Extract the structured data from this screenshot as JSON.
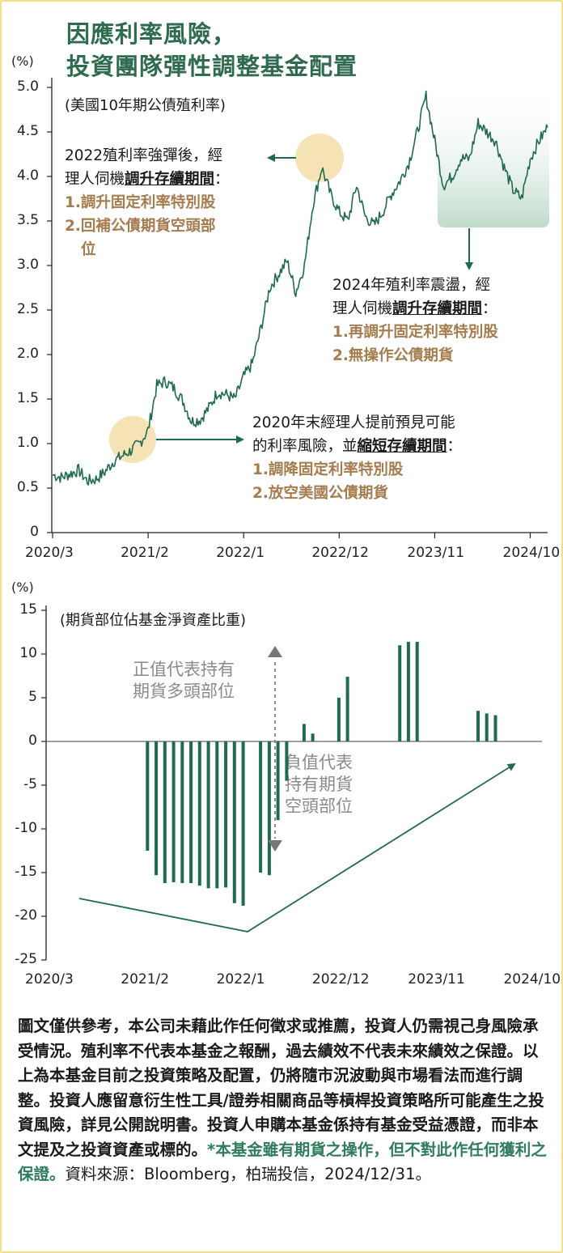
{
  "title_lines": [
    "因應利率風險，",
    "投資團隊彈性調整基金配置"
  ],
  "colors": {
    "accent": "#2f6b4e",
    "line": "#1f6b4f",
    "bar": "#1f6b4f",
    "highlight": "#f5e3b6",
    "action": "#a47c4d",
    "border": "#f3df8a"
  },
  "chart_data": [
    {
      "type": "line",
      "title": "(美國10年期公債殖利率)",
      "ylabel": "(%)",
      "ylim": [
        0,
        5.0
      ],
      "yticks": [
        "5.0",
        "4.5",
        "4.0",
        "3.5",
        "3.0",
        "2.5",
        "2.0",
        "1.5",
        "1.0",
        "0.5",
        "0"
      ],
      "xticks": [
        "2020/3",
        "2021/2",
        "2022/1",
        "2022/12",
        "2023/11",
        "2024/10"
      ],
      "series": [
        {
          "x": [
            "2020-03",
            "2020-04",
            "2020-05",
            "2020-06",
            "2020-07",
            "2020-08",
            "2020-09",
            "2020-10",
            "2020-11",
            "2020-12",
            "2021-01",
            "2021-02",
            "2021-03",
            "2021-04",
            "2021-05",
            "2021-06",
            "2021-07",
            "2021-08",
            "2021-09",
            "2021-10",
            "2021-11",
            "2021-12",
            "2022-01",
            "2022-02",
            "2022-03",
            "2022-04",
            "2022-05",
            "2022-06",
            "2022-07",
            "2022-08",
            "2022-09",
            "2022-10",
            "2022-11",
            "2022-12",
            "2023-01",
            "2023-02",
            "2023-03",
            "2023-04",
            "2023-05",
            "2023-06",
            "2023-07",
            "2023-08",
            "2023-09",
            "2023-10",
            "2023-11",
            "2023-12",
            "2024-01",
            "2024-02",
            "2024-03",
            "2024-04",
            "2024-05",
            "2024-06",
            "2024-07",
            "2024-08",
            "2024-09",
            "2024-10",
            "2024-11",
            "2024-12"
          ],
          "values": [
            0.65,
            0.62,
            0.66,
            0.7,
            0.58,
            0.6,
            0.68,
            0.8,
            0.86,
            0.92,
            1.0,
            1.15,
            1.65,
            1.7,
            1.62,
            1.48,
            1.25,
            1.27,
            1.4,
            1.58,
            1.55,
            1.5,
            1.75,
            1.9,
            2.3,
            2.75,
            2.9,
            3.05,
            2.7,
            3.0,
            3.7,
            4.1,
            3.8,
            3.6,
            3.5,
            3.9,
            3.55,
            3.45,
            3.6,
            3.8,
            3.95,
            4.15,
            4.5,
            4.9,
            4.4,
            3.9,
            4.0,
            4.2,
            4.2,
            4.6,
            4.5,
            4.4,
            4.1,
            3.85,
            3.75,
            4.2,
            4.4,
            4.55
          ]
        }
      ],
      "annotations": {
        "a2022": {
          "line1": "2022殖利率強彈後，經",
          "line2_pre": "理人伺機",
          "line2_u": "調升存續期間",
          "line2_post": "：",
          "act1": "1.調升固定利率特別股",
          "act2a": "2.回補公債期貨空頭部",
          "act2b": "位"
        },
        "a2024": {
          "line1": "2024年殖利率震盪，經",
          "line2_pre": "理人伺機",
          "line2_u": "調升存續期間",
          "line2_post": "：",
          "act1": "1.再調升固定利率特別股",
          "act2": "2.無操作公債期貨"
        },
        "a2020": {
          "line1": "2020年末經理人提前預見可能",
          "line2_pre": "的利率風險，並",
          "line2_u": "縮短存續期間",
          "line2_post": "：",
          "act1": "1.調降固定利率特別股",
          "act2": "2.放空美國公債期貨"
        }
      }
    },
    {
      "type": "bar",
      "title": "(期貨部位佔基金淨資產比重)",
      "ylabel": "(%)",
      "ylim": [
        -25,
        15
      ],
      "yticks": [
        "15",
        "10",
        "5",
        "0",
        "-5",
        "-10",
        "-15",
        "-20",
        "-25"
      ],
      "xticks": [
        "2020/3",
        "2021/2",
        "2022/1",
        "2022/12",
        "2023/11",
        "2024/10"
      ],
      "months": [
        11,
        12,
        13,
        14,
        15,
        16,
        17,
        18,
        19,
        20,
        21,
        22,
        23,
        24,
        25,
        26,
        27,
        28,
        29,
        30,
        31,
        32,
        33,
        34,
        35,
        36,
        37,
        38,
        39,
        40,
        41,
        42,
        43,
        44,
        45,
        46,
        47,
        48,
        49,
        50,
        51,
        52,
        53,
        54,
        55,
        56,
        57
      ],
      "values": [
        -12.5,
        -15.3,
        -16.2,
        -16.1,
        -16.2,
        -16.2,
        -16.5,
        -16.8,
        -16.8,
        -16.7,
        -18.5,
        -18.8,
        0,
        -15.0,
        -15.3,
        -9.0,
        -4.5,
        0,
        2.0,
        0.9,
        0,
        0,
        5.0,
        7.4,
        0,
        0,
        0,
        0,
        0,
        11.0,
        11.4,
        11.4,
        0,
        0,
        0,
        0,
        0,
        0,
        3.5,
        3.2,
        3.0,
        0,
        0,
        0,
        0,
        0,
        0
      ],
      "annotations": {
        "positive_lines": [
          "正值代表持有",
          "期貨多頭部位"
        ],
        "negative_lines": [
          "負值代表",
          "持有期貨",
          "空頭部位"
        ]
      }
    }
  ],
  "disclaimer": {
    "main": "圖文僅供參考，本公司未藉此作任何徵求或推薦，投資人仍需視己身風險承受情況。殖利率不代表本基金之報酬，過去績效不代表未來績效之保證。以上為本基金目前之投資策略及配置，仍將隨市況波動與市場看法而進行調整。投資人應留意衍生性工具/證券相關商品等槓桿投資策略所可能產生之投資風險，詳見公開說明書。投資人申購本基金係持有基金受益憑證，而非本文提及之投資資產或標的。",
    "highlight": "*本基金雖有期貨之操作，但不對此作任何獲利之保證。",
    "source": "資料來源：Bloomberg，柏瑞投信，2024/12/31。"
  }
}
